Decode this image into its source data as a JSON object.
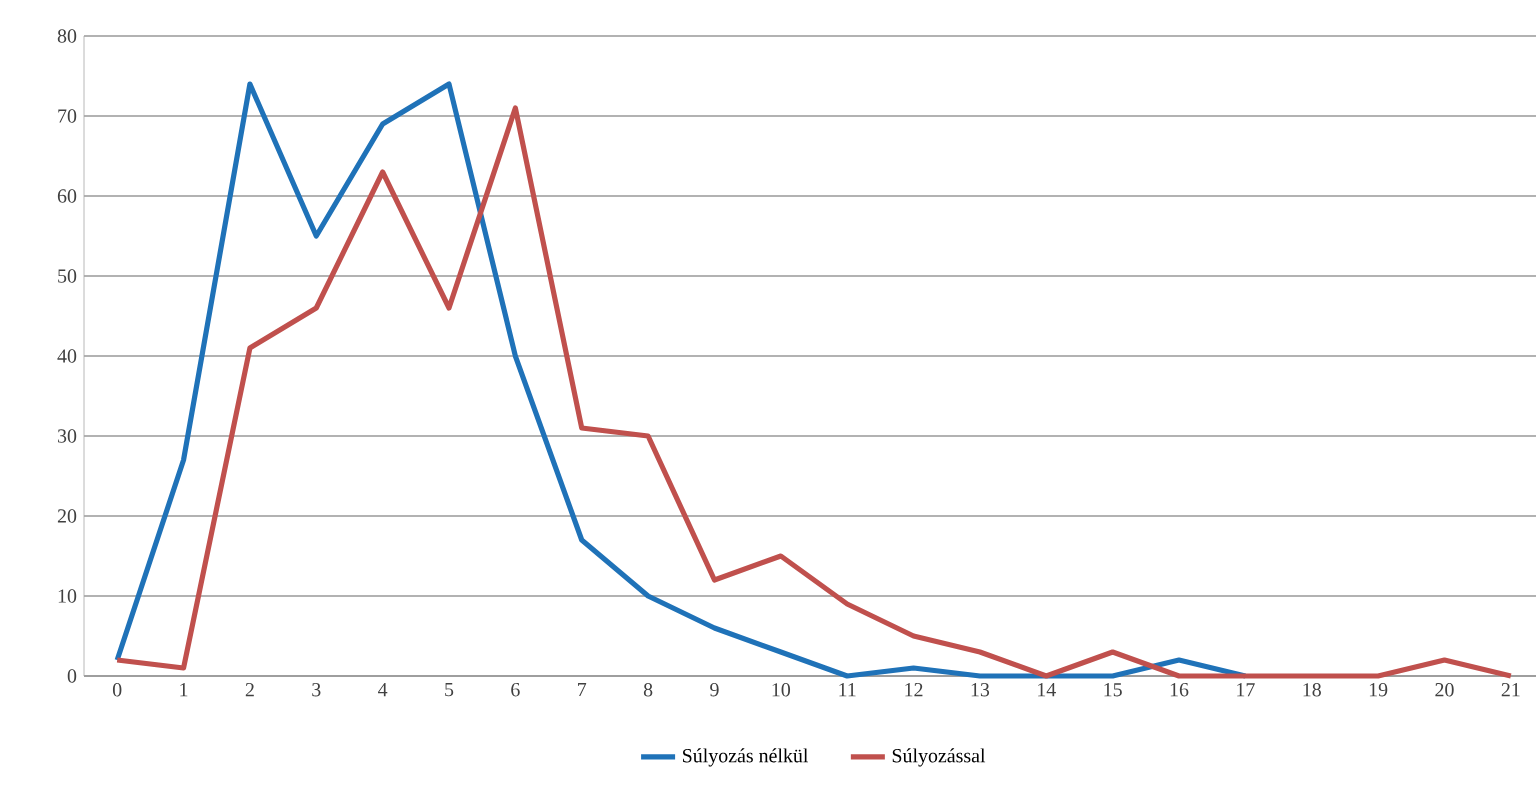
{
  "chart_data": {
    "type": "line",
    "categories": [
      "0",
      "1",
      "2",
      "3",
      "4",
      "5",
      "6",
      "7",
      "8",
      "9",
      "10",
      "11",
      "12",
      "13",
      "14",
      "15",
      "16",
      "17",
      "18",
      "19",
      "20",
      "21"
    ],
    "series": [
      {
        "name": "Súlyozás nélkül",
        "color": "#1f72b8",
        "values": [
          2,
          27,
          74,
          55,
          69,
          74,
          40,
          17,
          10,
          6,
          3,
          0,
          1,
          0,
          0,
          0,
          2,
          0,
          null,
          null,
          null,
          null
        ]
      },
      {
        "name": "Súlyozással",
        "color": "#c0504d",
        "values": [
          2,
          1,
          41,
          46,
          63,
          46,
          71,
          31,
          30,
          12,
          15,
          9,
          5,
          3,
          0,
          3,
          0,
          0,
          0,
          0,
          2,
          0
        ]
      }
    ],
    "ylim": [
      0,
      80
    ],
    "yticks": [
      0,
      10,
      20,
      30,
      40,
      50,
      60,
      70,
      80
    ],
    "grid": "y",
    "legend": "bottom",
    "marker": "none",
    "line_style": "solid"
  }
}
